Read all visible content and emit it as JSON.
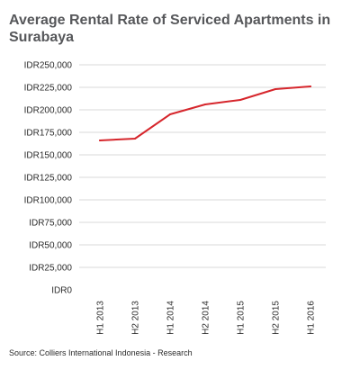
{
  "chart_data": {
    "type": "line",
    "title": "Average Rental Rate of Serviced Apartments in Surabaya",
    "categories": [
      "H1 2013",
      "H2 2013",
      "H1 2014",
      "H2 2014",
      "H1 2015",
      "H2 2015",
      "H1 2016"
    ],
    "series": [
      {
        "values": [
          166000,
          168000,
          195000,
          206000,
          211000,
          223000,
          226000
        ],
        "color": "#d6262c"
      }
    ],
    "yticks": [
      "IDR0",
      "IDR25,000",
      "IDR50,000",
      "IDR75,000",
      "IDR100,000",
      "IDR125,000",
      "IDR150,000",
      "IDR175,000",
      "IDR200,000",
      "IDR225,000",
      "IDR250,000"
    ],
    "ylim": [
      0,
      250000
    ],
    "grid": true,
    "gridline_color": "#d9d9d9",
    "source": "Source: Colliers International Indonesia - Research"
  }
}
